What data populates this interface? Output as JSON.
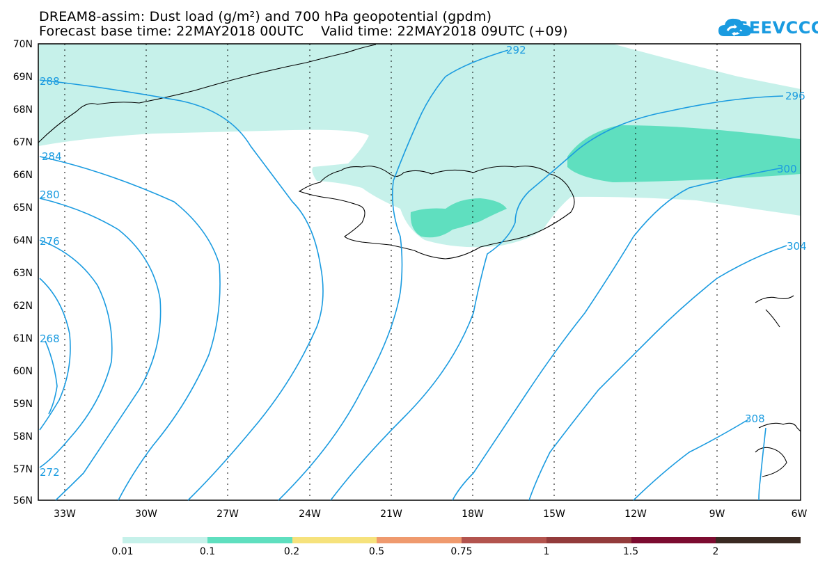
{
  "title": {
    "line1": "DREAM8-assim: Dust load (g/m²) and 700 hPa geopotential (gpdm)",
    "line2": "Forecast base time: 22MAY2018 00UTC    Valid time: 22MAY2018 09UTC (+09)"
  },
  "logo": {
    "text": "SEEVCCC",
    "icon": "cloud-sync-icon",
    "color": "#1a9be0"
  },
  "map": {
    "region": "Iceland and North Atlantic",
    "lat_labels": [
      "70N",
      "69N",
      "68N",
      "67N",
      "66N",
      "65N",
      "64N",
      "63N",
      "62N",
      "61N",
      "60N",
      "59N",
      "58N",
      "57N",
      "56N"
    ],
    "lon_labels": [
      "33W",
      "30W",
      "27W",
      "24W",
      "21W",
      "18W",
      "15W",
      "12W",
      "9W",
      "6W"
    ],
    "contour_labels": [
      "288",
      "292",
      "284",
      "280",
      "276",
      "268",
      "272",
      "296",
      "300",
      "304",
      "308"
    ],
    "contour_color": "#1a9be0",
    "fill_colors": {
      "light": "#c6f1ea",
      "medium": "#5fdfbf"
    }
  },
  "colorbar": {
    "colors": [
      "#c6f1ea",
      "#5fdfbf",
      "#f6e27c",
      "#ef9a6e",
      "#b3544e",
      "#933b3b",
      "#7c0c30",
      "#3a2a22",
      "#9a6fa0"
    ],
    "labels": [
      "0.01",
      "0.1",
      "0.2",
      "0.5",
      "0.75",
      "1",
      "1.5",
      "2"
    ]
  }
}
